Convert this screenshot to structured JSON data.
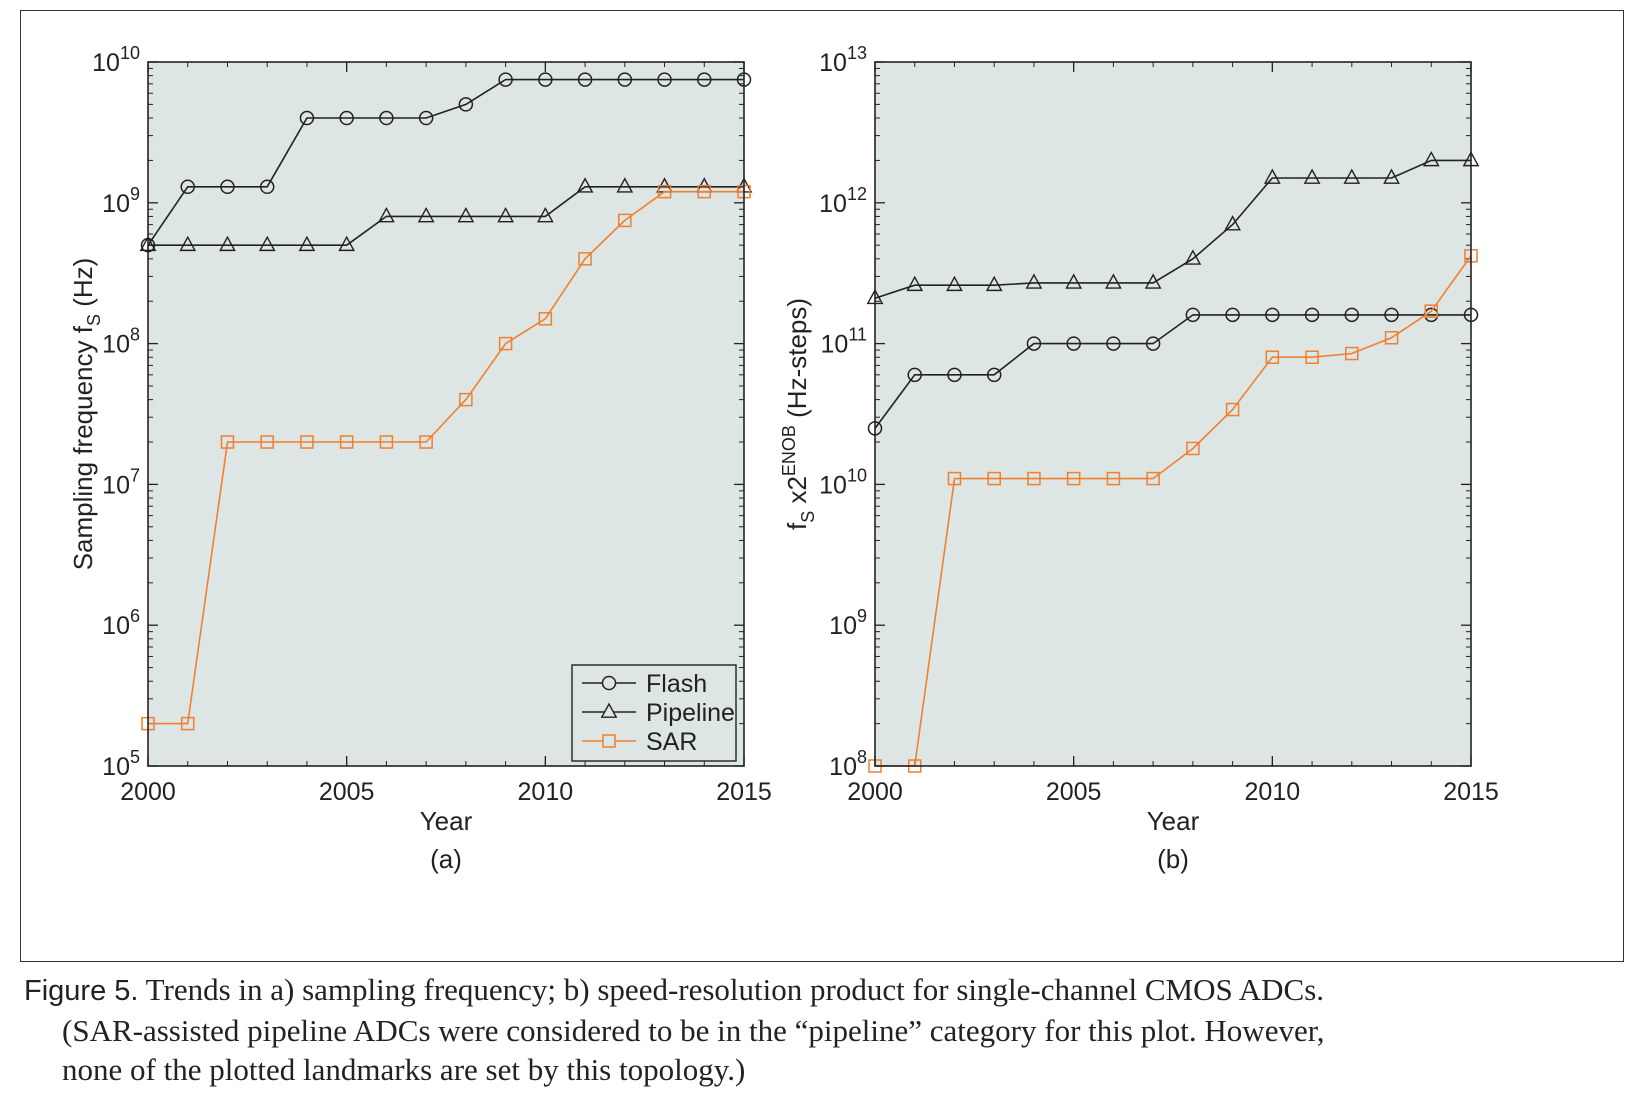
{
  "figure_caption": {
    "label": "Figure 5.",
    "line1": "Trends in a) sampling frequency; b) speed-resolution product for single-channel CMOS ADCs.",
    "line2": "(SAR-assisted pipeline ADCs were considered to be in the “pipeline” category for this plot. However,",
    "line3": "none of the plotted landmarks are set by this topology.)"
  },
  "colors": {
    "flash": "#222222",
    "pipeline": "#222222",
    "sar": "#f07f2e",
    "plot_bg": "#dde6e4"
  },
  "chart_data": [
    {
      "type": "line",
      "panel": "(a)",
      "xlabel": "Year",
      "ylabel": "Sampling frequency f",
      "ylabel_sub": "S",
      "ylabel_unit": "(Hz)",
      "yscale": "log",
      "xlim": [
        2000,
        2015
      ],
      "ylim_exp": [
        5,
        10
      ],
      "x_ticks": [
        2000,
        2005,
        2010,
        2015
      ],
      "y_tick_labels": [
        {
          "base": "10",
          "exp": "5"
        },
        {
          "base": "10",
          "exp": "6"
        },
        {
          "base": "10",
          "exp": "7"
        },
        {
          "base": "10",
          "exp": "8"
        },
        {
          "base": "10",
          "exp": "9"
        },
        {
          "base": "10",
          "exp": "10"
        }
      ],
      "legend": {
        "position": "bottom-right",
        "entries": [
          "Flash",
          "Pipeline",
          "SAR"
        ]
      },
      "x": [
        2000,
        2001,
        2002,
        2003,
        2004,
        2005,
        2006,
        2007,
        2008,
        2009,
        2010,
        2011,
        2012,
        2013,
        2014,
        2015
      ],
      "series": [
        {
          "name": "Flash",
          "marker": "circle",
          "values": [
            500000000.0,
            1300000000.0,
            1300000000.0,
            1300000000.0,
            4000000000.0,
            4000000000.0,
            4000000000.0,
            4000000000.0,
            5000000000.0,
            7500000000.0,
            7500000000.0,
            7500000000.0,
            7500000000.0,
            7500000000.0,
            7500000000.0,
            7500000000.0
          ]
        },
        {
          "name": "Pipeline",
          "marker": "triangle",
          "values": [
            500000000.0,
            500000000.0,
            500000000.0,
            500000000.0,
            500000000.0,
            500000000.0,
            800000000.0,
            800000000.0,
            800000000.0,
            800000000.0,
            800000000.0,
            1300000000.0,
            1300000000.0,
            1300000000.0,
            1300000000.0,
            1300000000.0
          ]
        },
        {
          "name": "SAR",
          "marker": "square",
          "values": [
            200000.0,
            200000.0,
            20000000.0,
            20000000.0,
            20000000.0,
            20000000.0,
            20000000.0,
            20000000.0,
            40000000.0,
            100000000.0,
            150000000.0,
            400000000.0,
            750000000.0,
            1200000000.0,
            1200000000.0,
            1200000000.0
          ]
        }
      ]
    },
    {
      "type": "line",
      "panel": "(b)",
      "xlabel": "Year",
      "ylabel": "f",
      "ylabel_sub": "S",
      "ylabel_mid": " x2",
      "ylabel_sup": "ENOB",
      "ylabel_unit": " (Hz-steps)",
      "yscale": "log",
      "xlim": [
        2000,
        2015
      ],
      "ylim_exp": [
        8,
        13
      ],
      "x_ticks": [
        2000,
        2005,
        2010,
        2015
      ],
      "y_tick_labels": [
        {
          "base": "10",
          "exp": "8"
        },
        {
          "base": "10",
          "exp": "9"
        },
        {
          "base": "10",
          "exp": "10"
        },
        {
          "base": "10",
          "exp": "11"
        },
        {
          "base": "10",
          "exp": "12"
        },
        {
          "base": "10",
          "exp": "13"
        }
      ],
      "x": [
        2000,
        2001,
        2002,
        2003,
        2004,
        2005,
        2006,
        2007,
        2008,
        2009,
        2010,
        2011,
        2012,
        2013,
        2014,
        2015
      ],
      "series": [
        {
          "name": "Flash",
          "marker": "circle",
          "values": [
            25000000000.0,
            60000000000.0,
            60000000000.0,
            60000000000.0,
            100000000000.0,
            100000000000.0,
            100000000000.0,
            100000000000.0,
            160000000000.0,
            160000000000.0,
            160000000000.0,
            160000000000.0,
            160000000000.0,
            160000000000.0,
            160000000000.0,
            160000000000.0
          ]
        },
        {
          "name": "Pipeline",
          "marker": "triangle",
          "values": [
            210000000000.0,
            260000000000.0,
            260000000000.0,
            260000000000.0,
            270000000000.0,
            270000000000.0,
            270000000000.0,
            270000000000.0,
            400000000000.0,
            700000000000.0,
            1500000000000.0,
            1500000000000.0,
            1500000000000.0,
            1500000000000.0,
            2000000000000.0,
            2000000000000.0
          ]
        },
        {
          "name": "SAR",
          "marker": "square",
          "values": [
            100000000.0,
            100000000.0,
            11000000000.0,
            11000000000.0,
            11000000000.0,
            11000000000.0,
            11000000000.0,
            11000000000.0,
            18000000000.0,
            34000000000.0,
            80000000000.0,
            80000000000.0,
            85000000000.0,
            110000000000.0,
            170000000000.0,
            420000000000.0
          ]
        }
      ]
    }
  ]
}
